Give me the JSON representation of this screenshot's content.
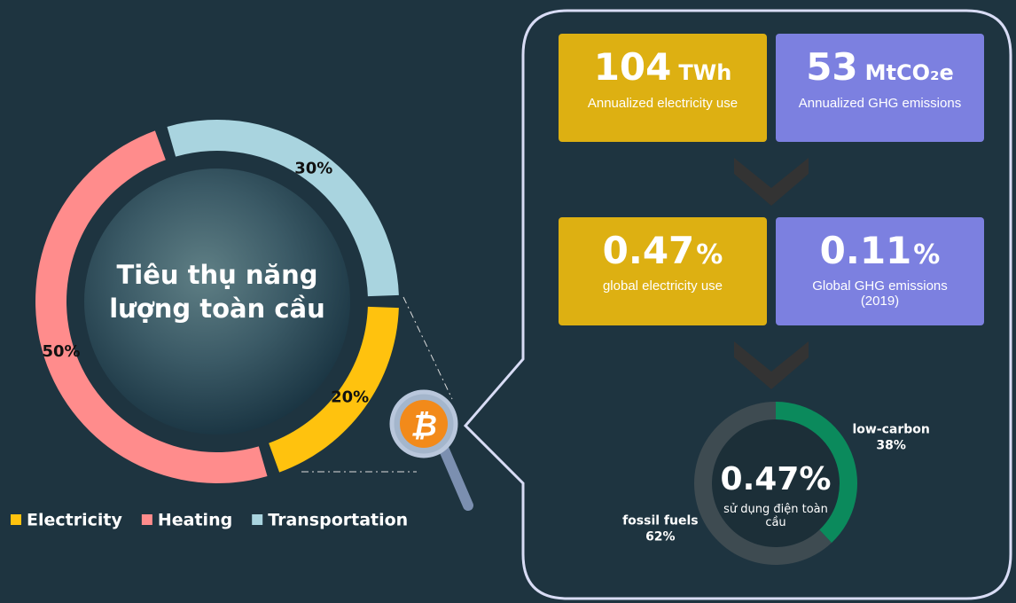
{
  "chart_data": [
    {
      "type": "pie",
      "title": "Tiêu thụ năng lượng toàn cầu",
      "categories": [
        "Electricity",
        "Heating",
        "Transportation"
      ],
      "values": [
        20,
        50,
        30
      ],
      "value_labels": [
        "20%",
        "50%",
        "30%"
      ],
      "colors": [
        "#ffc20e",
        "#ff8c8c",
        "#a9d4df"
      ],
      "legend": "bottom"
    },
    {
      "type": "pie",
      "title": "0.47%",
      "subtitle": "sử dụng điện toàn cầu",
      "categories": [
        "low-carbon",
        "fossil fuels"
      ],
      "values": [
        38,
        62
      ],
      "value_labels": [
        "38%",
        "62%"
      ],
      "colors": [
        "#0b8a5c",
        "#3e4b51"
      ]
    }
  ],
  "stats": [
    {
      "value": 104,
      "unit": "TWh",
      "label": "Annualized electricity use",
      "color": "#ddb012"
    },
    {
      "value": 53,
      "unit": "MtCO₂e",
      "label": "Annualized GHG emissions",
      "color": "#7c80e0"
    },
    {
      "value": 0.47,
      "unit": "%",
      "label": "global electricity use",
      "color": "#ddb012"
    },
    {
      "value": 0.11,
      "unit": "%",
      "label": "Global GHG emissions (2019)",
      "color": "#7c80e0"
    }
  ]
}
